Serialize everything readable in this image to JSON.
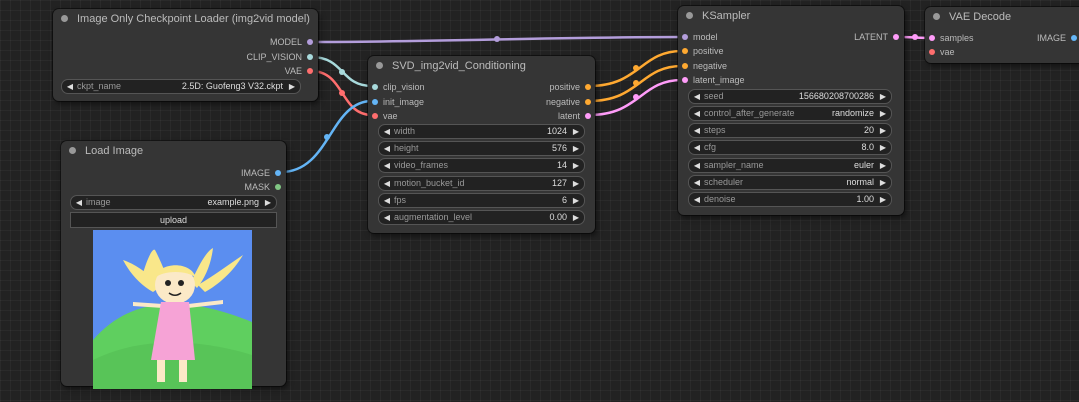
{
  "colors": {
    "model": "#b39ddb",
    "clip_vision": "#a8dadc",
    "vae": "#ff6e6e",
    "image": "#64b5f6",
    "mask": "#81c784",
    "conditioning": "#ffa931",
    "latent": "#ff9cf9"
  },
  "nodes": {
    "ckpt_loader": {
      "title": "Image Only Checkpoint Loader (img2vid model)",
      "outputs": [
        "MODEL",
        "CLIP_VISION",
        "VAE"
      ],
      "widgets": [
        {
          "label": "ckpt_name",
          "value": "2.5D: Guofeng3 V32.ckpt"
        }
      ]
    },
    "load_image": {
      "title": "Load Image",
      "outputs": [
        "IMAGE",
        "MASK"
      ],
      "widgets": [
        {
          "label": "image",
          "value": "example.png"
        }
      ],
      "upload_label": "upload"
    },
    "svd_cond": {
      "title": "SVD_img2vid_Conditioning",
      "inputs": [
        "clip_vision",
        "init_image",
        "vae"
      ],
      "outputs": [
        "positive",
        "negative",
        "latent"
      ],
      "widgets": [
        {
          "label": "width",
          "value": "1024"
        },
        {
          "label": "height",
          "value": "576"
        },
        {
          "label": "video_frames",
          "value": "14"
        },
        {
          "label": "motion_bucket_id",
          "value": "127"
        },
        {
          "label": "fps",
          "value": "6"
        },
        {
          "label": "augmentation_level",
          "value": "0.00"
        }
      ]
    },
    "ksampler": {
      "title": "KSampler",
      "inputs": [
        "model",
        "positive",
        "negative",
        "latent_image"
      ],
      "outputs": [
        "LATENT"
      ],
      "widgets": [
        {
          "label": "seed",
          "value": "156680208700286"
        },
        {
          "label": "control_after_generate",
          "value": "randomize"
        },
        {
          "label": "steps",
          "value": "20"
        },
        {
          "label": "cfg",
          "value": "8.0"
        },
        {
          "label": "sampler_name",
          "value": "euler"
        },
        {
          "label": "scheduler",
          "value": "normal"
        },
        {
          "label": "denoise",
          "value": "1.00"
        }
      ]
    },
    "vae_decode": {
      "title": "VAE Decode",
      "inputs": [
        "samples",
        "vae"
      ],
      "outputs": [
        "IMAGE"
      ]
    }
  }
}
